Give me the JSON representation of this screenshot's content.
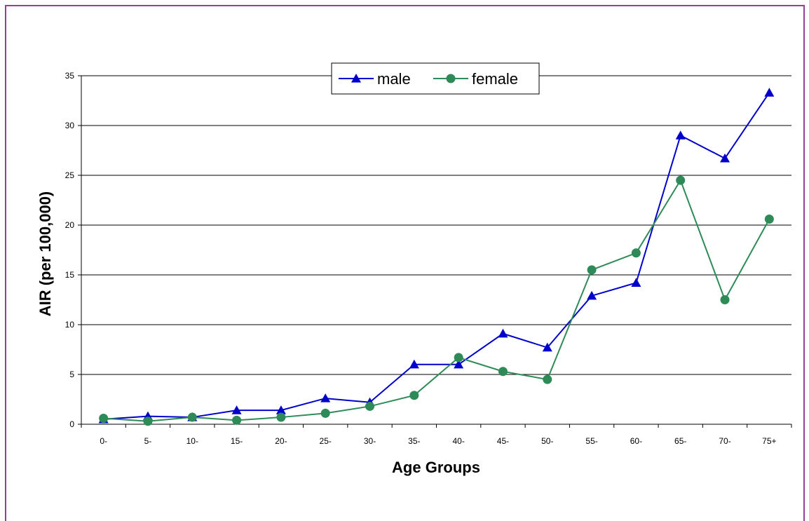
{
  "chart_data": {
    "type": "line",
    "title": "",
    "xlabel": "Age Groups",
    "ylabel": "AIR (per 100,000)",
    "categories": [
      "0-",
      "5-",
      "10-",
      "15-",
      "20-",
      "25-",
      "30-",
      "35-",
      "40-",
      "45-",
      "50-",
      "55-",
      "60-",
      "65-",
      "70-",
      "75+"
    ],
    "ylim": [
      0,
      35
    ],
    "yticks": [
      0,
      5,
      10,
      15,
      20,
      25,
      30,
      35
    ],
    "grid": true,
    "legend": "top-center",
    "series": [
      {
        "name": "male",
        "color": "#0000cc",
        "marker": "triangle",
        "values": [
          0.5,
          0.8,
          0.7,
          1.4,
          1.4,
          2.6,
          2.2,
          6.0,
          6.0,
          9.1,
          7.7,
          12.9,
          14.2,
          29.0,
          26.7,
          33.3
        ]
      },
      {
        "name": "female",
        "color": "#2e8b57",
        "marker": "circle",
        "values": [
          0.6,
          0.3,
          0.7,
          0.4,
          0.7,
          1.1,
          1.8,
          2.9,
          6.7,
          5.3,
          4.5,
          15.5,
          17.2,
          24.5,
          12.5,
          20.6
        ]
      }
    ]
  }
}
